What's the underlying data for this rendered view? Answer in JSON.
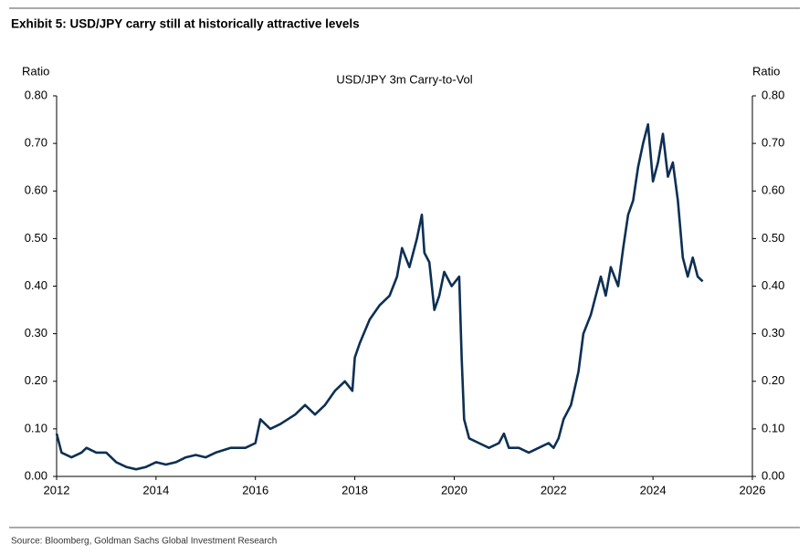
{
  "title": "Exhibit 5: USD/JPY carry still at historically attractive levels",
  "source": "Source: Bloomberg, Goldman Sachs Global Investment Research",
  "chart_data": {
    "type": "line",
    "title": "USD/JPY 3m Carry-to-Vol",
    "y_label": "Ratio",
    "y2_label": "Ratio",
    "xlim": [
      2012,
      2026
    ],
    "xticks": [
      2012,
      2014,
      2016,
      2018,
      2020,
      2022,
      2024,
      2026
    ],
    "ylim": [
      0,
      0.8
    ],
    "yticks": [
      {
        "value": 0,
        "label": "0.00"
      },
      {
        "value": 0.1,
        "label": "0.10"
      },
      {
        "value": 0.2,
        "label": "0.20"
      },
      {
        "value": 0.3,
        "label": "0.30"
      },
      {
        "value": 0.4,
        "label": "0.40"
      },
      {
        "value": 0.5,
        "label": "0.50"
      },
      {
        "value": 0.6,
        "label": "0.60"
      },
      {
        "value": 0.7,
        "label": "0.70"
      },
      {
        "value": 0.8,
        "label": "0.80"
      }
    ],
    "y2lim": [
      0,
      0.8
    ],
    "y2ticks": [
      {
        "value": 0,
        "label": "0.00"
      },
      {
        "value": 0.1,
        "label": "0.10"
      },
      {
        "value": 0.2,
        "label": "0.20"
      },
      {
        "value": 0.3,
        "label": "0.30"
      },
      {
        "value": 0.4,
        "label": "0.40"
      },
      {
        "value": 0.5,
        "label": "0.50"
      },
      {
        "value": 0.6,
        "label": "0.60"
      },
      {
        "value": 0.7,
        "label": "0.70"
      },
      {
        "value": 0.8,
        "label": "0.80"
      }
    ],
    "x": [
      2012.0,
      2012.1,
      2012.3,
      2012.5,
      2012.6,
      2012.8,
      2013.0,
      2013.2,
      2013.4,
      2013.6,
      2013.8,
      2014.0,
      2014.2,
      2014.4,
      2014.6,
      2014.8,
      2015.0,
      2015.2,
      2015.5,
      2015.8,
      2016.0,
      2016.1,
      2016.3,
      2016.5,
      2016.8,
      2017.0,
      2017.2,
      2017.4,
      2017.6,
      2017.8,
      2017.95,
      2018.0,
      2018.1,
      2018.3,
      2018.5,
      2018.7,
      2018.85,
      2018.95,
      2019.1,
      2019.25,
      2019.35,
      2019.4,
      2019.5,
      2019.6,
      2019.7,
      2019.8,
      2019.95,
      2020.1,
      2020.15,
      2020.2,
      2020.3,
      2020.5,
      2020.7,
      2020.9,
      2021.0,
      2021.1,
      2021.3,
      2021.5,
      2021.7,
      2021.9,
      2022.0,
      2022.1,
      2022.2,
      2022.35,
      2022.5,
      2022.6,
      2022.75,
      2022.85,
      2022.95,
      2023.05,
      2023.15,
      2023.3,
      2023.4,
      2023.5,
      2023.6,
      2023.7,
      2023.8,
      2023.9,
      2024.0,
      2024.1,
      2024.2,
      2024.3,
      2024.4,
      2024.5,
      2024.6,
      2024.7,
      2024.8,
      2024.9,
      2025.0
    ],
    "series": [
      {
        "name": "USD/JPY 3m Carry-to-Vol",
        "color": "#0d2f54",
        "values": [
          0.09,
          0.05,
          0.04,
          0.05,
          0.06,
          0.05,
          0.05,
          0.03,
          0.02,
          0.015,
          0.02,
          0.03,
          0.025,
          0.03,
          0.04,
          0.045,
          0.04,
          0.05,
          0.06,
          0.06,
          0.07,
          0.12,
          0.1,
          0.11,
          0.13,
          0.15,
          0.13,
          0.15,
          0.18,
          0.2,
          0.18,
          0.25,
          0.28,
          0.33,
          0.36,
          0.38,
          0.42,
          0.48,
          0.44,
          0.5,
          0.55,
          0.47,
          0.45,
          0.35,
          0.38,
          0.43,
          0.4,
          0.42,
          0.25,
          0.12,
          0.08,
          0.07,
          0.06,
          0.07,
          0.09,
          0.06,
          0.06,
          0.05,
          0.06,
          0.07,
          0.06,
          0.08,
          0.12,
          0.15,
          0.22,
          0.3,
          0.34,
          0.38,
          0.42,
          0.38,
          0.44,
          0.4,
          0.48,
          0.55,
          0.58,
          0.65,
          0.7,
          0.74,
          0.62,
          0.66,
          0.72,
          0.63,
          0.66,
          0.58,
          0.46,
          0.42,
          0.46,
          0.42,
          0.41
        ]
      }
    ]
  }
}
